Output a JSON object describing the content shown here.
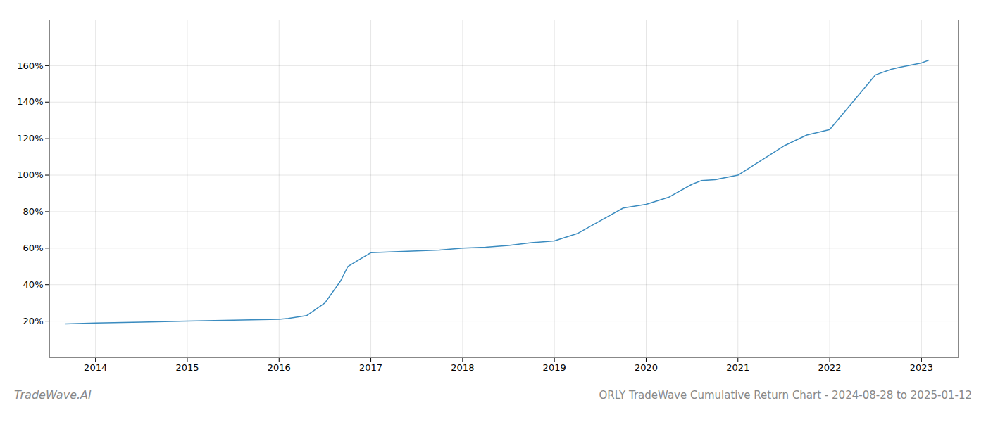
{
  "chart_data": {
    "type": "line",
    "title": "ORLY TradeWave Cumulative Return Chart - 2024-08-28 to 2025-01-12",
    "annotations": [
      "TradeWave.AI"
    ],
    "x": [
      2013.67,
      2014.0,
      2014.5,
      2015.0,
      2015.5,
      2016.0,
      2016.1,
      2016.3,
      2016.5,
      2016.67,
      2016.75,
      2017.0,
      2017.25,
      2017.5,
      2017.75,
      2018.0,
      2018.25,
      2018.5,
      2018.75,
      2019.0,
      2019.25,
      2019.5,
      2019.75,
      2020.0,
      2020.25,
      2020.5,
      2020.6,
      2020.75,
      2021.0,
      2021.25,
      2021.5,
      2021.75,
      2022.0,
      2022.25,
      2022.5,
      2022.67,
      2022.75,
      2023.0,
      2023.08
    ],
    "values": [
      18.5,
      19.0,
      19.5,
      20.0,
      20.5,
      21.0,
      21.5,
      23.0,
      30.0,
      42.0,
      50.0,
      57.5,
      58.0,
      58.5,
      59.0,
      60.0,
      60.5,
      61.5,
      63.0,
      64.0,
      68.0,
      75.0,
      82.0,
      84.0,
      88.0,
      95.0,
      97.0,
      97.5,
      100.0,
      108.0,
      116.0,
      122.0,
      125.0,
      140.0,
      155.0,
      158.0,
      159.0,
      161.5,
      163.0
    ],
    "color": "#3a8bbf",
    "xlim": [
      2013.5,
      2023.4
    ],
    "xticks": [
      2014,
      2015,
      2016,
      2017,
      2018,
      2019,
      2020,
      2021,
      2022,
      2023
    ],
    "ylim": [
      0,
      185
    ],
    "yticks": [
      {
        "value": 20,
        "label": "20%"
      },
      {
        "value": 40,
        "label": "40%"
      },
      {
        "value": 60,
        "label": "60%"
      },
      {
        "value": 80,
        "label": "80%"
      },
      {
        "value": 100,
        "label": "100%"
      },
      {
        "value": 120,
        "label": "120%"
      },
      {
        "value": 140,
        "label": "140%"
      },
      {
        "value": 160,
        "label": "160%"
      }
    ],
    "grid": true
  }
}
